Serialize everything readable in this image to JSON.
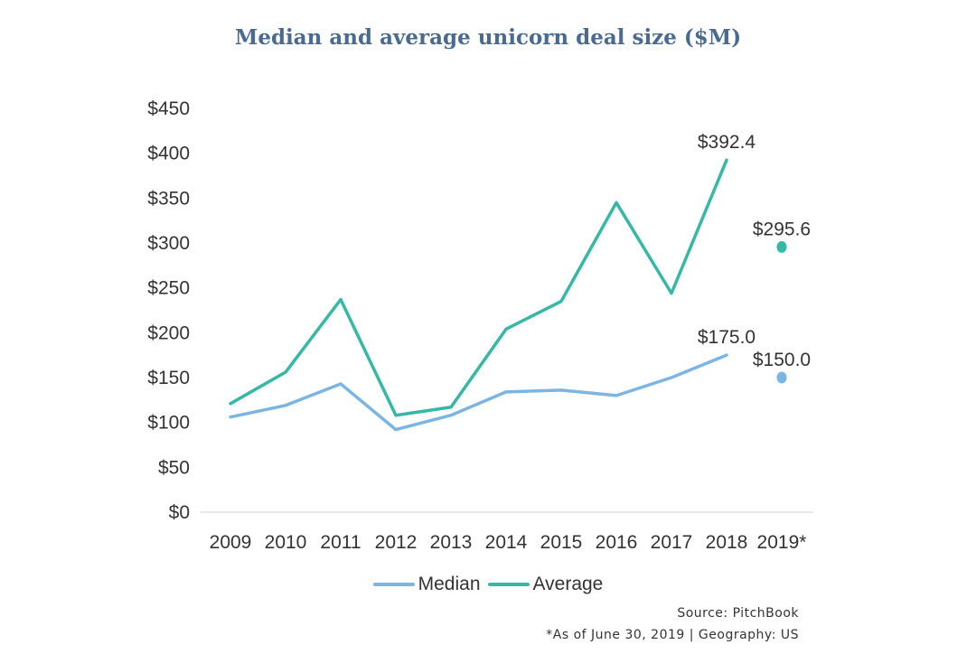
{
  "chart_data": {
    "type": "line",
    "title": "Median and average unicorn deal size ($M)",
    "categories": [
      "2009",
      "2010",
      "2011",
      "2012",
      "2013",
      "2014",
      "2015",
      "2016",
      "2017",
      "2018",
      "2019*"
    ],
    "y_ticks": [
      "$0",
      "$50",
      "$100",
      "$150",
      "$200",
      "$250",
      "$300",
      "$350",
      "$400",
      "$450"
    ],
    "ylim": [
      0,
      450
    ],
    "series": [
      {
        "name": "Median",
        "color": "#7ab5e3",
        "values": [
          106,
          119,
          143,
          92,
          108,
          134,
          136,
          130,
          150,
          175.0,
          150.0
        ],
        "separate_last_point": true
      },
      {
        "name": "Average",
        "color": "#35b8a4",
        "values": [
          121,
          156,
          237,
          108,
          117,
          204,
          235,
          345,
          244,
          392.4,
          295.6
        ],
        "separate_last_point": true
      }
    ],
    "data_labels": [
      {
        "series": "Median",
        "index": 9,
        "text": "$175.0"
      },
      {
        "series": "Median",
        "index": 10,
        "text": "$150.0"
      },
      {
        "series": "Average",
        "index": 9,
        "text": "$392.4"
      },
      {
        "series": "Average",
        "index": 10,
        "text": "$295.6"
      }
    ],
    "legend": [
      "Median",
      "Average"
    ],
    "legend_position": "bottom",
    "grid": false
  },
  "footer": {
    "source": "Source: PitchBook",
    "note": "*As of June 30, 2019 | Geography: US"
  }
}
